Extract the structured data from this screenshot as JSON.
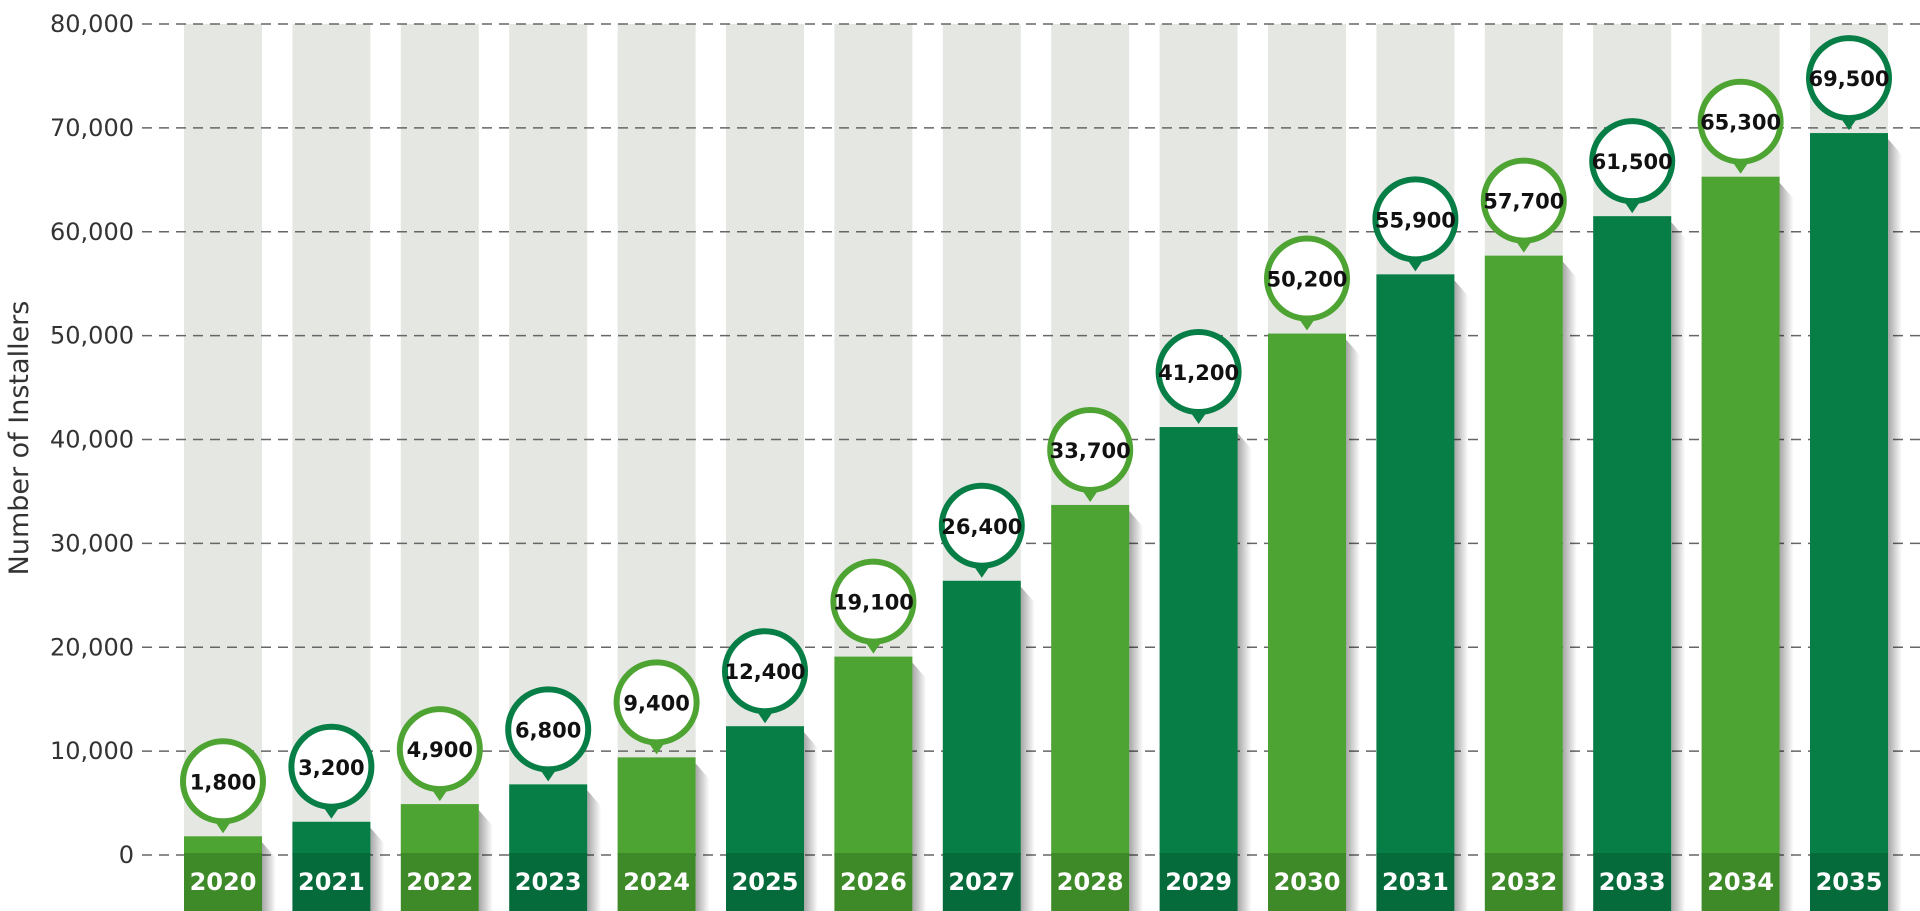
{
  "chart_data": {
    "type": "bar",
    "title": "",
    "xlabel": "",
    "ylabel": "Number of Installers",
    "ylim": [
      0,
      80000
    ],
    "yticks": [
      0,
      10000,
      20000,
      30000,
      40000,
      50000,
      60000,
      70000,
      80000
    ],
    "ytick_labels": [
      "0",
      "10,000",
      "20,000",
      "30,000",
      "40,000",
      "50,000",
      "60,000",
      "70,000",
      "80,000"
    ],
    "grid": "horizontal dashed",
    "categories": [
      "2020",
      "2021",
      "2022",
      "2023",
      "2024",
      "2025",
      "2026",
      "2027",
      "2028",
      "2029",
      "2030",
      "2031",
      "2032",
      "2033",
      "2034",
      "2035"
    ],
    "values": [
      1800,
      3200,
      4900,
      6800,
      9400,
      12400,
      19100,
      26400,
      33700,
      41200,
      50200,
      55900,
      57700,
      61500,
      65300,
      69500
    ],
    "value_labels": [
      "1,800",
      "3,200",
      "4,900",
      "6,800",
      "9,400",
      "12,400",
      "19,100",
      "26,400",
      "33,700",
      "41,200",
      "50,200",
      "55,900",
      "57,700",
      "61,500",
      "65,300",
      "69,500"
    ],
    "bar_colors": [
      "#4ea432",
      "#077e45",
      "#4ea432",
      "#077e45",
      "#4ea432",
      "#077e45",
      "#4ea432",
      "#077e45",
      "#4ea432",
      "#077e45",
      "#4ea432",
      "#077e45",
      "#4ea432",
      "#077e45",
      "#4ea432",
      "#077e45"
    ],
    "colors": {
      "light_green": "#4ea432",
      "dark_green": "#077e45",
      "light_green_label": "#3f8a28",
      "dark_green_label": "#056b3a",
      "column_background": "#e5e7e3",
      "grid": "#666666"
    }
  }
}
